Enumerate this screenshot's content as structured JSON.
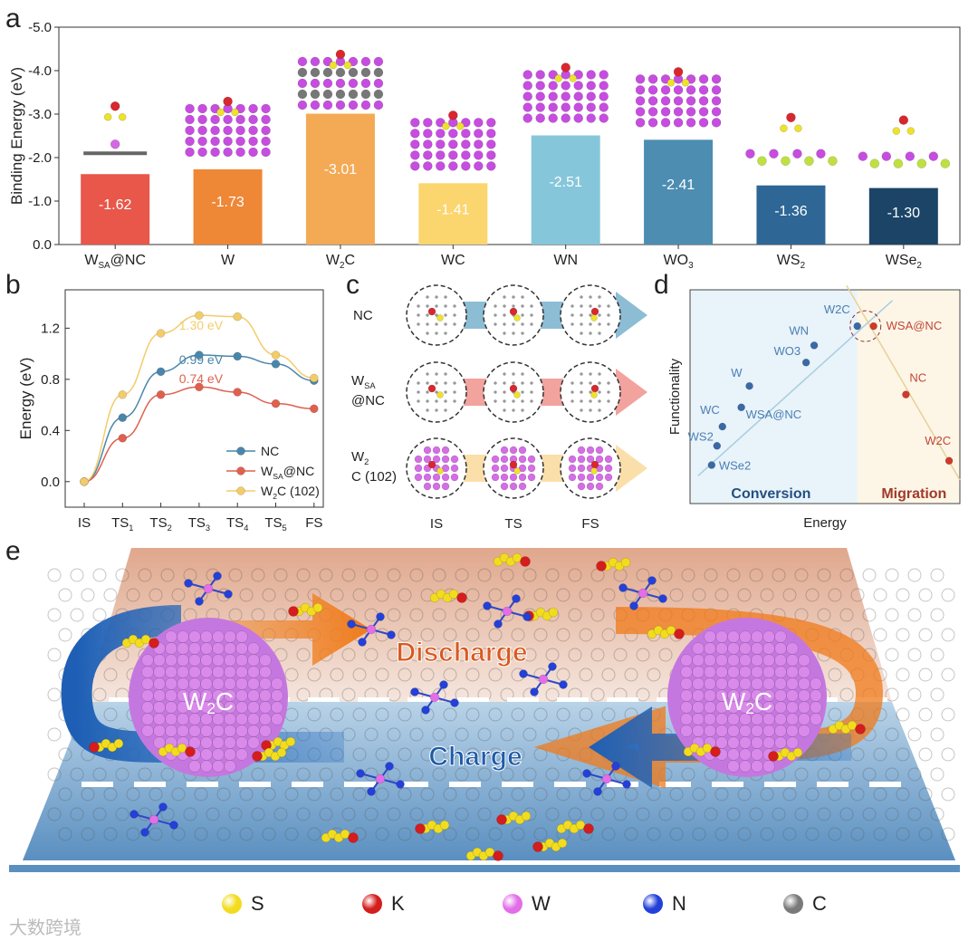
{
  "panels": {
    "a": "a",
    "b": "b",
    "c": "c",
    "d": "d",
    "e": "e"
  },
  "chart_data": [
    {
      "type": "bar",
      "id": "a",
      "ylabel": "Binding Energy (eV)",
      "ylim": [
        0,
        -5.0
      ],
      "yticks": [
        "0.0",
        "-1.0",
        "-2.0",
        "-3.0",
        "-4.0",
        "-5.0"
      ],
      "categories": [
        {
          "main": "W",
          "sub": "SA",
          "tail": "@NC"
        },
        {
          "main": "W",
          "sub": "",
          "tail": ""
        },
        {
          "main": "W",
          "sub": "2",
          "tail": "C"
        },
        {
          "main": "WC",
          "sub": "",
          "tail": ""
        },
        {
          "main": "WN",
          "sub": "",
          "tail": ""
        },
        {
          "main": "WO",
          "sub": "3",
          "tail": ""
        },
        {
          "main": "WS",
          "sub": "2",
          "tail": ""
        },
        {
          "main": "WSe",
          "sub": "2",
          "tail": ""
        }
      ],
      "values": [
        -1.62,
        -1.73,
        -3.01,
        -1.41,
        -2.51,
        -2.41,
        -1.36,
        -1.3
      ],
      "labels": [
        "-1.62",
        "-1.73",
        "-3.01",
        "-1.41",
        "-2.51",
        "-2.41",
        "-1.36",
        "-1.30"
      ],
      "colors": [
        "#e8574a",
        "#ee8736",
        "#f4aa55",
        "#fbd56e",
        "#86c6da",
        "#4c8db1",
        "#2e6795",
        "#1c4467"
      ]
    },
    {
      "type": "line",
      "id": "b",
      "ylabel": "Energy (eV)",
      "ylim": [
        -0.2,
        1.5
      ],
      "yticks": [
        "0.0",
        "0.4",
        "0.8",
        "1.2"
      ],
      "categories": [
        {
          "main": "IS",
          "sub": ""
        },
        {
          "main": "TS",
          "sub": "1"
        },
        {
          "main": "TS",
          "sub": "2"
        },
        {
          "main": "TS",
          "sub": "3"
        },
        {
          "main": "TS",
          "sub": "4"
        },
        {
          "main": "TS",
          "sub": "5"
        },
        {
          "main": "FS",
          "sub": ""
        }
      ],
      "series": [
        {
          "name": "NC",
          "legend": {
            "main": "NC",
            "sub": "",
            "tail": ""
          },
          "color": "#4a86aa",
          "values": [
            0,
            0.5,
            0.86,
            0.99,
            0.98,
            0.92,
            0.79
          ],
          "annotation": "0.99 eV"
        },
        {
          "name": "WSA@NC",
          "legend": {
            "main": "W",
            "sub": "SA",
            "tail": "@NC"
          },
          "color": "#e0604f",
          "values": [
            0,
            0.34,
            0.68,
            0.74,
            0.7,
            0.61,
            0.57
          ],
          "annotation": "0.74 eV"
        },
        {
          "name": "W2C (102)",
          "legend": {
            "main": "W",
            "sub": "2",
            "tail": "C (102)"
          },
          "color": "#f3cc6a",
          "values": [
            0,
            0.68,
            1.16,
            1.3,
            1.29,
            0.99,
            0.81
          ],
          "annotation": "1.30 eV"
        }
      ]
    },
    {
      "type": "scatter",
      "id": "d",
      "xlabel": "Energy",
      "ylabel": "Functionality",
      "regions": [
        "Conversion",
        "Migration"
      ],
      "conversion_points": [
        {
          "label": "WSe2",
          "x": 0.08,
          "y": 0.18
        },
        {
          "label": "WS2",
          "x": 0.1,
          "y": 0.27
        },
        {
          "label": "WC",
          "x": 0.12,
          "y": 0.36
        },
        {
          "label": "WSA@NC",
          "x": 0.19,
          "y": 0.45
        },
        {
          "label": "W",
          "x": 0.22,
          "y": 0.55
        },
        {
          "label": "WO3",
          "x": 0.43,
          "y": 0.66
        },
        {
          "label": "WN",
          "x": 0.46,
          "y": 0.74
        },
        {
          "label": "W2C",
          "x": 0.62,
          "y": 0.83
        }
      ],
      "migration_points": [
        {
          "label": "WSA@NC",
          "x": 0.68,
          "y": 0.83
        },
        {
          "label": "NC",
          "x": 0.8,
          "y": 0.51
        },
        {
          "label": "W2C",
          "x": 0.96,
          "y": 0.2
        }
      ]
    }
  ],
  "d_labels": {
    "W2C": [
      "W",
      "2",
      "C"
    ],
    "WN": "WN",
    "WO3": [
      "WO",
      "3"
    ],
    "W": "W",
    "WC": "WC",
    "WS2": [
      "WS",
      "2"
    ],
    "WSA": [
      "W",
      "SA",
      "@NC"
    ],
    "WSe2": [
      "WSe",
      "2"
    ],
    "NC": "NC",
    "conversion": "Conversion",
    "migration": "Migration"
  },
  "c": {
    "rows": [
      {
        "main": "NC",
        "sub": "",
        "tail": ""
      },
      {
        "main": "W",
        "sub": "SA",
        "tail": "@NC"
      },
      {
        "main": "W",
        "sub": "2",
        "tail": "C (102)"
      }
    ],
    "cols": [
      "IS",
      "TS",
      "FS"
    ],
    "arrow_colors": [
      "#2e86b3",
      "#e8584c",
      "#f7c565"
    ]
  },
  "e": {
    "discharge": "Discharge",
    "charge": "Charge",
    "particle": {
      "main": "W",
      "sub": "2",
      "tail": "C"
    }
  },
  "legend": [
    {
      "label": "S",
      "color": "#f2dc1e"
    },
    {
      "label": "K",
      "color": "#d51d1d"
    },
    {
      "label": "W",
      "color": "#e36ee8"
    },
    {
      "label": "N",
      "color": "#2340d8"
    },
    {
      "label": "C",
      "color": "#7a7a7a"
    }
  ],
  "watermark": "大数跨境"
}
